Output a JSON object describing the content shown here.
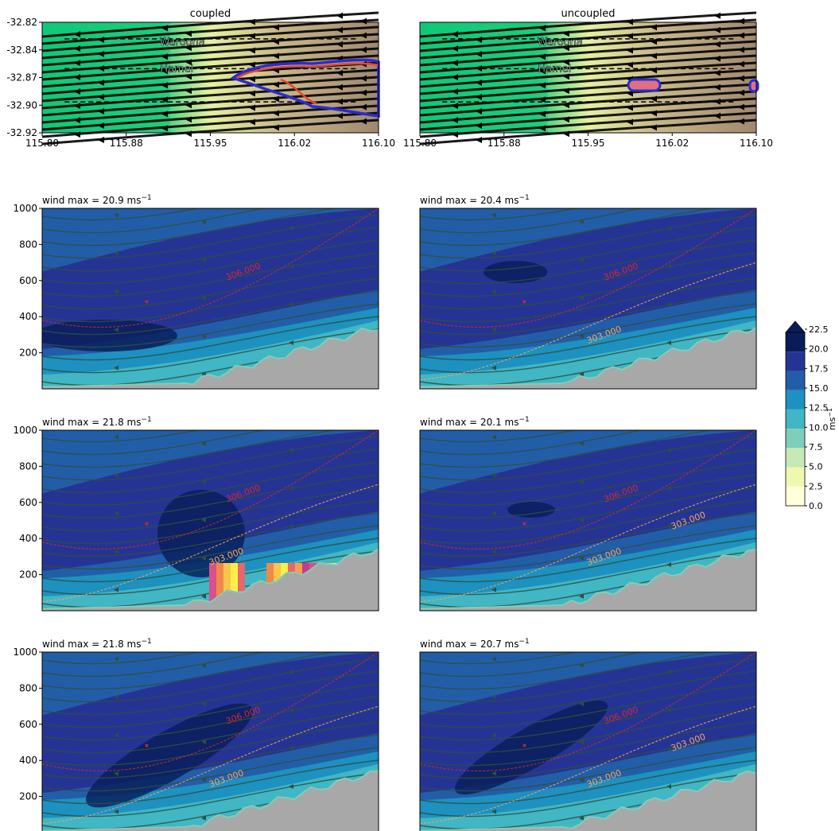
{
  "figure": {
    "columns": [
      "coupled",
      "uncoupled"
    ],
    "wind_max_prefix": "wind max =  ",
    "wind_unit_base": "ms",
    "wind_unit_exp": "−1"
  },
  "colors": {
    "wind_levels": [
      "#ffffd9",
      "#edf8b1",
      "#c7e9b4",
      "#7fcdbb",
      "#41b6c4",
      "#1d91c0",
      "#225ea8",
      "#253494",
      "#081d58"
    ],
    "terrain": "#a8a8a8",
    "streamline": "#2f4f3f",
    "isentrope_306": "#d62728",
    "isentrope_303": "#f4a460",
    "fire_front": "#e8452c",
    "fire_outline": "#2b2bd0",
    "map_low": "#10c878",
    "map_high": "#b0a080"
  },
  "chart_data": [
    {
      "panel": "map-coupled",
      "type": "map",
      "title": "coupled",
      "xlim": [
        115.8,
        116.1
      ],
      "ylim": [
        -32.92,
        -32.82
      ],
      "xticks": [
        "115.80",
        "115.88",
        "115.95",
        "116.02",
        "116.10"
      ],
      "yticks": [
        "-32.82",
        "-32.84",
        "-32.87",
        "-32.90",
        "-32.92"
      ],
      "places": [
        {
          "name": "Waroona",
          "lon": 115.925,
          "lat": -32.838
        },
        {
          "name": "Hamel",
          "lon": 115.92,
          "lat": -32.862
        }
      ],
      "transects_lat": [
        -32.835,
        -32.862,
        -32.892
      ]
    },
    {
      "panel": "map-uncoupled",
      "type": "map",
      "title": "uncoupled",
      "xlim": [
        115.8,
        116.1
      ],
      "ylim": [
        -32.92,
        -32.82
      ],
      "xticks": [
        "115.80",
        "115.88",
        "115.95",
        "116.02",
        "116.10"
      ],
      "yticks": [],
      "places": [
        {
          "name": "Waroona",
          "lon": 115.925,
          "lat": -32.838
        },
        {
          "name": "Hamel",
          "lon": 115.92,
          "lat": -32.862
        }
      ],
      "transects_lat": [
        -32.835,
        -32.862,
        -32.892
      ]
    },
    {
      "panel": "xs-coupled-1",
      "type": "heatmap",
      "wind_max": "20.9",
      "ylim": [
        0,
        1000
      ],
      "yticks": [
        "1000",
        "800",
        "600",
        "400",
        "200"
      ],
      "isentropes": [
        "306.000"
      ]
    },
    {
      "panel": "xs-uncoupled-1",
      "type": "heatmap",
      "wind_max": "20.4",
      "ylim": [
        0,
        1000
      ],
      "yticks": [],
      "isentropes": [
        "306.000",
        "303.000"
      ]
    },
    {
      "panel": "xs-coupled-2",
      "type": "heatmap",
      "wind_max": "21.8",
      "ylim": [
        0,
        1000
      ],
      "yticks": [
        "1000",
        "800",
        "600",
        "400",
        "200"
      ],
      "isentropes": [
        "306.000",
        "303.000"
      ]
    },
    {
      "panel": "xs-uncoupled-2",
      "type": "heatmap",
      "wind_max": "20.1",
      "ylim": [
        0,
        1000
      ],
      "yticks": [],
      "isentropes": [
        "306.000",
        "303.000",
        "303.000"
      ]
    },
    {
      "panel": "xs-coupled-3",
      "type": "heatmap",
      "wind_max": "21.8",
      "ylim": [
        0,
        1000
      ],
      "yticks": [
        "1000",
        "800",
        "600",
        "400",
        "200"
      ],
      "isentropes": [
        "306.000",
        "303.000"
      ]
    },
    {
      "panel": "xs-uncoupled-3",
      "type": "heatmap",
      "wind_max": "20.7",
      "ylim": [
        0,
        1000
      ],
      "yticks": [],
      "isentropes": [
        "306.000",
        "303.000",
        "303.000"
      ]
    },
    {
      "panel": "colorbar",
      "type": "colorbar",
      "ticks": [
        "22.5",
        "20.0",
        "17.5",
        "15.0",
        "12.5",
        "10.0",
        "7.5",
        "5.0",
        "2.5",
        "0.0"
      ],
      "label_base": "ms",
      "label_exp": "−1",
      "extend": "max"
    }
  ]
}
